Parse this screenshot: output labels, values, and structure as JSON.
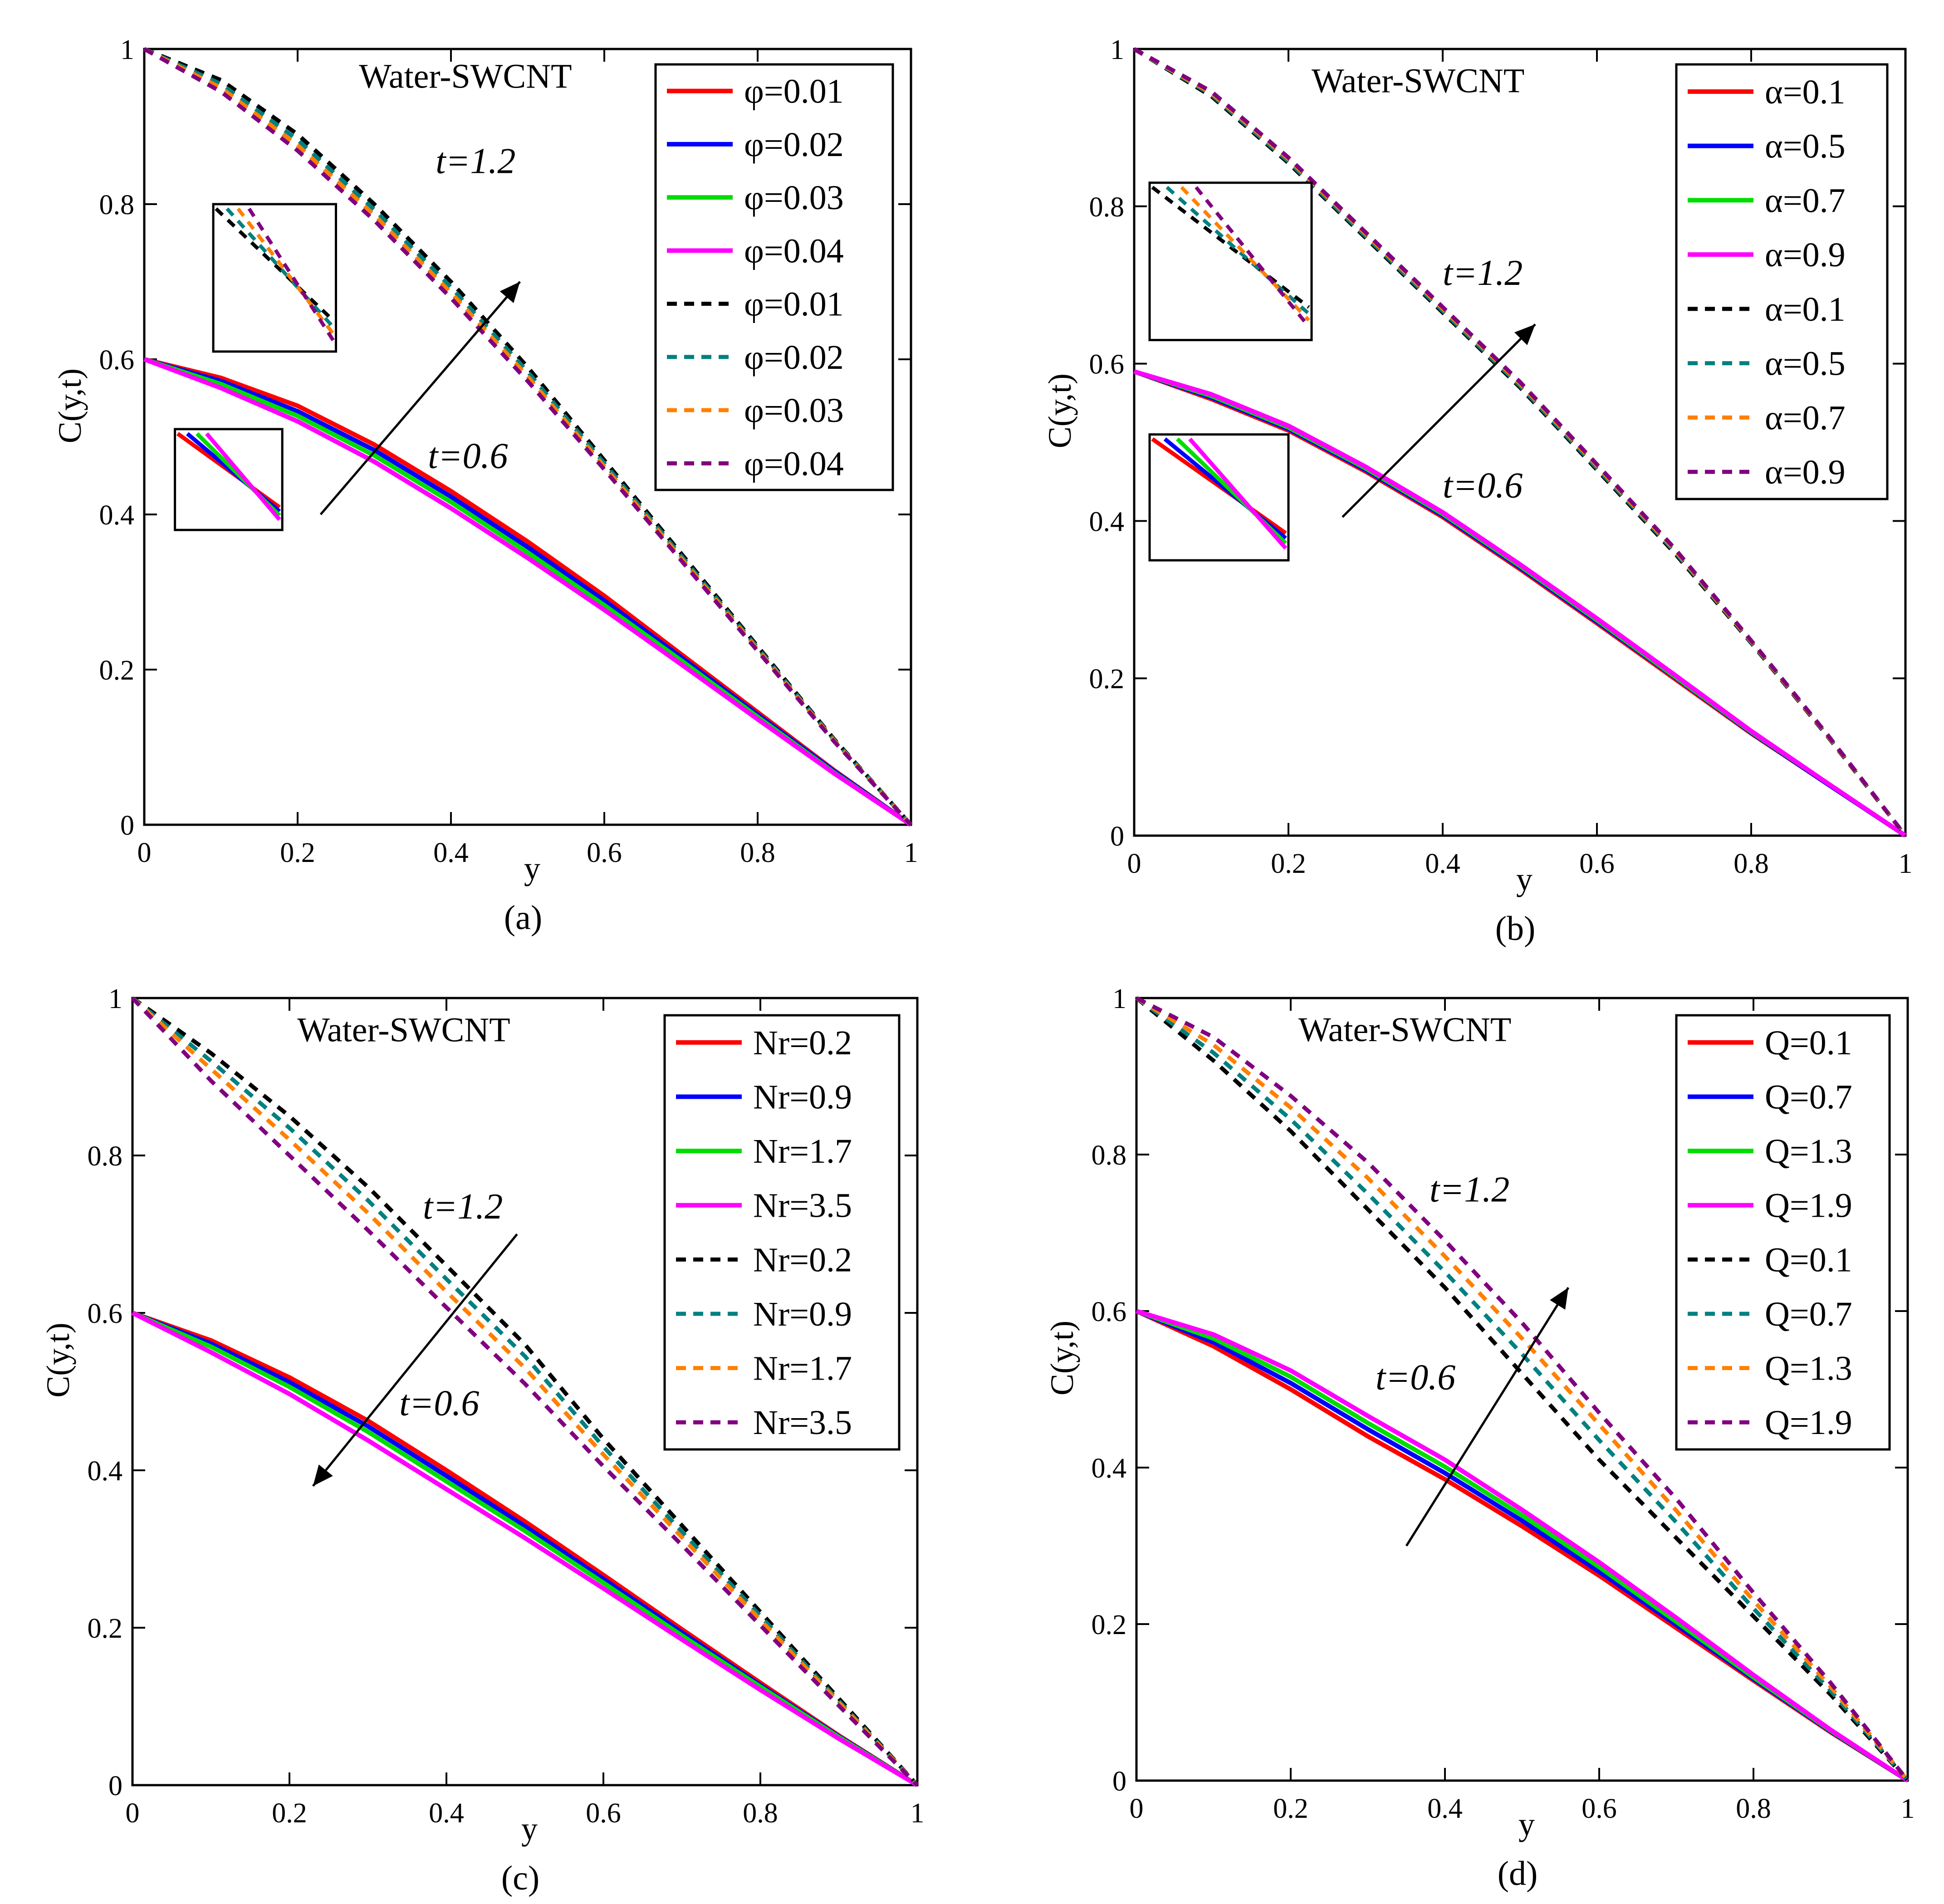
{
  "figure": {
    "common": {
      "watermark": "Water-SWCNT",
      "xlabel": "y",
      "ylabel": "C(y,t)",
      "xticks": [
        "0",
        "0.2",
        "0.4",
        "0.6",
        "0.8",
        "1"
      ],
      "yticks": [
        "0",
        "0.2",
        "0.4",
        "0.6",
        "0.8",
        "1"
      ],
      "series_colors": [
        "#ff0000",
        "#0000ff",
        "#00dd00",
        "#ff00ff",
        "#000000",
        "#008080",
        "#ff8000",
        "#800080"
      ]
    }
  },
  "chart_data": [
    {
      "type": "line",
      "panel_label": "(a)",
      "title": "Water-SWCNT",
      "xlabel": "y",
      "ylabel": "C(y,t)",
      "xlim": [
        0,
        1
      ],
      "ylim": [
        0,
        1
      ],
      "xticks": [
        "0",
        "0.2",
        "0.4",
        "0.6",
        "0.8",
        "1"
      ],
      "yticks": [
        "0",
        "0.2",
        "0.4",
        "0.6",
        "0.8",
        "1"
      ],
      "annotations": [
        "t=1.2",
        "t=0.6"
      ],
      "arrow": {
        "from": [
          0.23,
          0.4
        ],
        "to": [
          0.49,
          0.7
        ]
      },
      "legend": [
        "φ=0.01",
        "φ=0.02",
        "φ=0.03",
        "φ=0.04",
        "φ=0.01",
        "φ=0.02",
        "φ=0.03",
        "φ=0.04"
      ],
      "insets": [
        {
          "x0": 0.09,
          "x1": 0.25,
          "y0": 0.61,
          "y1": 0.8,
          "dashed": true,
          "order": [
            4,
            5,
            6,
            7
          ]
        },
        {
          "x0": 0.04,
          "x1": 0.18,
          "y0": 0.38,
          "y1": 0.51,
          "dashed": false,
          "order": [
            0,
            1,
            2,
            3
          ]
        }
      ],
      "x": [
        0,
        0.1,
        0.2,
        0.3,
        0.4,
        0.5,
        0.6,
        0.7,
        0.8,
        0.9,
        1.0
      ],
      "series": [
        {
          "name": "φ=0.01",
          "t": "0.6",
          "style": "solid",
          "values": [
            0.6,
            0.576,
            0.54,
            0.49,
            0.43,
            0.365,
            0.295,
            0.22,
            0.145,
            0.07,
            0
          ]
        },
        {
          "name": "φ=0.02",
          "t": "0.6",
          "style": "solid",
          "values": [
            0.6,
            0.572,
            0.533,
            0.483,
            0.423,
            0.358,
            0.289,
            0.216,
            0.142,
            0.069,
            0
          ]
        },
        {
          "name": "φ=0.03",
          "t": "0.6",
          "style": "solid",
          "values": [
            0.6,
            0.568,
            0.527,
            0.476,
            0.416,
            0.351,
            0.283,
            0.212,
            0.139,
            0.067,
            0
          ]
        },
        {
          "name": "φ=0.04",
          "t": "0.6",
          "style": "solid",
          "values": [
            0.6,
            0.563,
            0.52,
            0.468,
            0.408,
            0.344,
            0.277,
            0.207,
            0.136,
            0.066,
            0
          ]
        },
        {
          "name": "φ=0.01",
          "t": "1.2",
          "style": "dashed",
          "values": [
            1.0,
            0.96,
            0.89,
            0.8,
            0.7,
            0.59,
            0.47,
            0.35,
            0.23,
            0.11,
            0
          ]
        },
        {
          "name": "φ=0.02",
          "t": "1.2",
          "style": "dashed",
          "values": [
            1.0,
            0.955,
            0.883,
            0.793,
            0.693,
            0.584,
            0.466,
            0.347,
            0.228,
            0.109,
            0
          ]
        },
        {
          "name": "φ=0.03",
          "t": "1.2",
          "style": "dashed",
          "values": [
            1.0,
            0.95,
            0.876,
            0.786,
            0.686,
            0.578,
            0.462,
            0.344,
            0.226,
            0.108,
            0
          ]
        },
        {
          "name": "φ=0.04",
          "t": "1.2",
          "style": "dashed",
          "values": [
            1.0,
            0.945,
            0.869,
            0.779,
            0.679,
            0.572,
            0.458,
            0.341,
            0.224,
            0.107,
            0
          ]
        }
      ]
    },
    {
      "type": "line",
      "panel_label": "(b)",
      "title": "Water-SWCNT",
      "xlabel": "y",
      "ylabel": "C(y,t)",
      "xlim": [
        0,
        1
      ],
      "ylim": [
        0,
        1
      ],
      "xticks": [
        "0",
        "0.2",
        "0.4",
        "0.6",
        "0.8",
        "1"
      ],
      "yticks": [
        "0",
        "0.2",
        "0.4",
        "0.6",
        "0.8",
        "1"
      ],
      "annotations": [
        "t=1.2",
        "t=0.6"
      ],
      "arrow": {
        "from": [
          0.27,
          0.405
        ],
        "to": [
          0.52,
          0.65
        ]
      },
      "legend": [
        "α=0.1",
        "α=0.5",
        "α=0.7",
        "α=0.9",
        "α=0.1",
        "α=0.5",
        "α=0.7",
        "α=0.9"
      ],
      "insets": [
        {
          "x0": 0.02,
          "x1": 0.23,
          "y0": 0.63,
          "y1": 0.83,
          "dashed": true,
          "order": [
            4,
            5,
            6,
            7
          ]
        },
        {
          "x0": 0.02,
          "x1": 0.2,
          "y0": 0.35,
          "y1": 0.51,
          "dashed": false,
          "order": [
            0,
            1,
            2,
            3
          ]
        }
      ],
      "x": [
        0,
        0.1,
        0.2,
        0.3,
        0.4,
        0.5,
        0.6,
        0.7,
        0.8,
        0.9,
        1.0
      ],
      "series": [
        {
          "name": "α=0.1",
          "t": "0.6",
          "style": "solid",
          "values": [
            0.59,
            0.555,
            0.515,
            0.463,
            0.405,
            0.339,
            0.27,
            0.2,
            0.13,
            0.065,
            0
          ]
        },
        {
          "name": "α=0.5",
          "t": "0.6",
          "style": "solid",
          "values": [
            0.59,
            0.557,
            0.517,
            0.465,
            0.407,
            0.341,
            0.272,
            0.202,
            0.131,
            0.065,
            0
          ]
        },
        {
          "name": "α=0.7",
          "t": "0.6",
          "style": "solid",
          "values": [
            0.59,
            0.559,
            0.519,
            0.467,
            0.409,
            0.343,
            0.274,
            0.203,
            0.132,
            0.066,
            0
          ]
        },
        {
          "name": "α=0.9",
          "t": "0.6",
          "style": "solid",
          "values": [
            0.59,
            0.561,
            0.521,
            0.469,
            0.411,
            0.345,
            0.276,
            0.205,
            0.133,
            0.066,
            0
          ]
        },
        {
          "name": "α=0.1",
          "t": "1.2",
          "style": "dashed",
          "values": [
            1.0,
            0.94,
            0.855,
            0.76,
            0.665,
            0.57,
            0.465,
            0.36,
            0.245,
            0.125,
            0
          ]
        },
        {
          "name": "α=0.5",
          "t": "1.2",
          "style": "dashed",
          "values": [
            1.0,
            0.942,
            0.857,
            0.762,
            0.667,
            0.572,
            0.467,
            0.362,
            0.246,
            0.126,
            0
          ]
        },
        {
          "name": "α=0.7",
          "t": "1.2",
          "style": "dashed",
          "values": [
            1.0,
            0.944,
            0.86,
            0.765,
            0.67,
            0.575,
            0.47,
            0.364,
            0.247,
            0.126,
            0
          ]
        },
        {
          "name": "α=0.9",
          "t": "1.2",
          "style": "dashed",
          "values": [
            1.0,
            0.946,
            0.862,
            0.767,
            0.672,
            0.577,
            0.472,
            0.366,
            0.248,
            0.127,
            0
          ]
        }
      ]
    },
    {
      "type": "line",
      "panel_label": "(c)",
      "title": "Water-SWCNT",
      "xlabel": "y",
      "ylabel": "C(y,t)",
      "xlim": [
        0,
        1
      ],
      "ylim": [
        0,
        1
      ],
      "xticks": [
        "0",
        "0.2",
        "0.4",
        "0.6",
        "0.8",
        "1"
      ],
      "yticks": [
        "0",
        "0.2",
        "0.4",
        "0.6",
        "0.8",
        "1"
      ],
      "annotations": [
        "t=1.2",
        "t=0.6"
      ],
      "arrow": {
        "from": [
          0.49,
          0.7
        ],
        "to": [
          0.23,
          0.38
        ]
      },
      "legend": [
        "Nr=0.2",
        "Nr=0.9",
        "Nr=1.7",
        "Nr=3.5",
        "Nr=0.2",
        "Nr=0.9",
        "Nr=1.7",
        "Nr=3.5"
      ],
      "insets": [],
      "x": [
        0,
        0.1,
        0.2,
        0.3,
        0.4,
        0.5,
        0.6,
        0.7,
        0.8,
        0.9,
        1.0
      ],
      "series": [
        {
          "name": "Nr=0.2",
          "t": "0.6",
          "style": "solid",
          "values": [
            0.6,
            0.565,
            0.518,
            0.463,
            0.4,
            0.335,
            0.267,
            0.198,
            0.13,
            0.063,
            0
          ]
        },
        {
          "name": "Nr=0.9",
          "t": "0.6",
          "style": "solid",
          "values": [
            0.6,
            0.561,
            0.512,
            0.456,
            0.393,
            0.329,
            0.262,
            0.194,
            0.127,
            0.062,
            0
          ]
        },
        {
          "name": "Nr=1.7",
          "t": "0.6",
          "style": "solid",
          "values": [
            0.6,
            0.557,
            0.506,
            0.449,
            0.386,
            0.323,
            0.257,
            0.19,
            0.125,
            0.061,
            0
          ]
        },
        {
          "name": "Nr=3.5",
          "t": "0.6",
          "style": "solid",
          "values": [
            0.6,
            0.55,
            0.497,
            0.438,
            0.376,
            0.314,
            0.25,
            0.185,
            0.121,
            0.059,
            0
          ]
        },
        {
          "name": "Nr=0.2",
          "t": "1.2",
          "style": "dashed",
          "values": [
            1.0,
            0.93,
            0.85,
            0.76,
            0.66,
            0.56,
            0.44,
            0.33,
            0.22,
            0.11,
            0
          ]
        },
        {
          "name": "Nr=0.9",
          "t": "1.2",
          "style": "dashed",
          "values": [
            1.0,
            0.92,
            0.835,
            0.743,
            0.643,
            0.545,
            0.43,
            0.322,
            0.215,
            0.107,
            0
          ]
        },
        {
          "name": "Nr=1.7",
          "t": "1.2",
          "style": "dashed",
          "values": [
            1.0,
            0.91,
            0.82,
            0.727,
            0.627,
            0.53,
            0.42,
            0.315,
            0.21,
            0.105,
            0
          ]
        },
        {
          "name": "Nr=3.5",
          "t": "1.2",
          "style": "dashed",
          "values": [
            1.0,
            0.895,
            0.8,
            0.705,
            0.607,
            0.51,
            0.405,
            0.305,
            0.203,
            0.101,
            0
          ]
        }
      ]
    },
    {
      "type": "line",
      "panel_label": "(d)",
      "title": "Water-SWCNT",
      "xlabel": "y",
      "ylabel": "C(y,t)",
      "xlim": [
        0,
        1
      ],
      "ylim": [
        0,
        1
      ],
      "xticks": [
        "0",
        "0.2",
        "0.4",
        "0.6",
        "0.8",
        "1"
      ],
      "yticks": [
        "0",
        "0.2",
        "0.4",
        "0.6",
        "0.8",
        "1"
      ],
      "annotations": [
        "t=1.2",
        "t=0.6"
      ],
      "arrow": {
        "from": [
          0.35,
          0.3
        ],
        "to": [
          0.56,
          0.63
        ]
      },
      "legend": [
        "Q=0.1",
        "Q=0.7",
        "Q=1.3",
        "Q=1.9",
        "Q=0.1",
        "Q=0.7",
        "Q=1.3",
        "Q=1.9"
      ],
      "insets": [],
      "x": [
        0,
        0.1,
        0.2,
        0.3,
        0.4,
        0.5,
        0.6,
        0.7,
        0.8,
        0.9,
        1.0
      ],
      "series": [
        {
          "name": "Q=0.1",
          "t": "0.6",
          "style": "solid",
          "values": [
            0.6,
            0.555,
            0.5,
            0.44,
            0.385,
            0.325,
            0.262,
            0.195,
            0.128,
            0.062,
            0
          ]
        },
        {
          "name": "Q=0.7",
          "t": "0.6",
          "style": "solid",
          "values": [
            0.6,
            0.56,
            0.508,
            0.449,
            0.393,
            0.332,
            0.267,
            0.199,
            0.13,
            0.063,
            0
          ]
        },
        {
          "name": "Q=1.3",
          "t": "0.6",
          "style": "solid",
          "values": [
            0.6,
            0.565,
            0.516,
            0.457,
            0.401,
            0.339,
            0.273,
            0.203,
            0.132,
            0.064,
            0
          ]
        },
        {
          "name": "Q=1.9",
          "t": "0.6",
          "style": "solid",
          "values": [
            0.6,
            0.57,
            0.524,
            0.466,
            0.41,
            0.346,
            0.279,
            0.208,
            0.135,
            0.065,
            0
          ]
        },
        {
          "name": "Q=0.1",
          "t": "1.2",
          "style": "dashed",
          "values": [
            1.0,
            0.92,
            0.83,
            0.73,
            0.63,
            0.52,
            0.41,
            0.31,
            0.21,
            0.11,
            0
          ]
        },
        {
          "name": "Q=0.7",
          "t": "1.2",
          "style": "dashed",
          "values": [
            1.0,
            0.93,
            0.845,
            0.75,
            0.65,
            0.545,
            0.435,
            0.33,
            0.22,
            0.115,
            0
          ]
        },
        {
          "name": "Q=1.3",
          "t": "1.2",
          "style": "dashed",
          "values": [
            1.0,
            0.94,
            0.86,
            0.77,
            0.67,
            0.565,
            0.455,
            0.345,
            0.23,
            0.12,
            0
          ]
        },
        {
          "name": "Q=1.9",
          "t": "1.2",
          "style": "dashed",
          "values": [
            1.0,
            0.95,
            0.875,
            0.79,
            0.69,
            0.585,
            0.47,
            0.36,
            0.24,
            0.125,
            0
          ]
        }
      ]
    }
  ]
}
